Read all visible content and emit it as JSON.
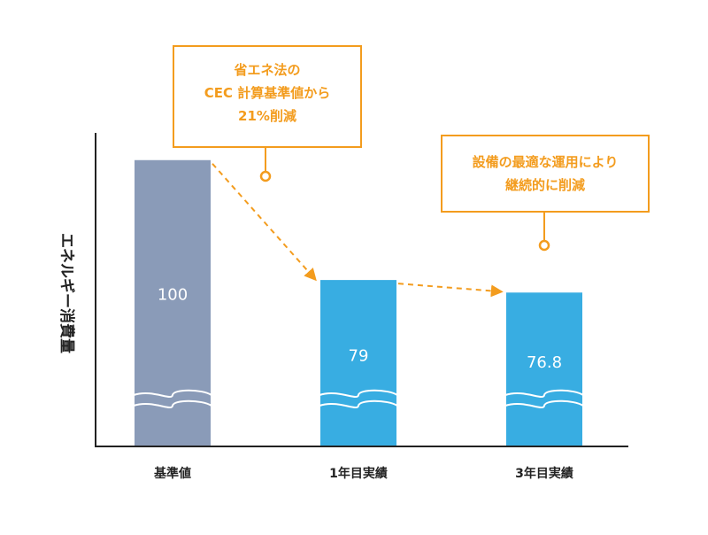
{
  "chart_data": {
    "type": "bar",
    "title": "",
    "xlabel": "",
    "ylabel": "エネルギー消費量",
    "ylim": [
      50,
      104
    ],
    "axis_break": true,
    "grid": false,
    "categories": [
      "基準値",
      "1年目実績",
      "3年目実績"
    ],
    "values": [
      100,
      79,
      76.8
    ],
    "value_labels": [
      "100",
      "79",
      "76.8"
    ],
    "bar_colors": [
      "#8a9bb8",
      "#38ade2",
      "#38ade2"
    ],
    "trend_arrow_color": "#f39c1e",
    "annotations": [
      {
        "lines": [
          "省エネ法の",
          "CEC 計算基準値から",
          "21%削減"
        ],
        "points_to": "1年目実績"
      },
      {
        "lines": [
          "設備の最適な運用により",
          "継続的に削減"
        ],
        "points_to": "3年目実績"
      }
    ]
  },
  "colors": {
    "axis": "#222222",
    "label_text": "#222222",
    "bar_label_text": "#ffffff",
    "callout_accent": "#f39c1e",
    "callout_fill": "#ffffff"
  }
}
